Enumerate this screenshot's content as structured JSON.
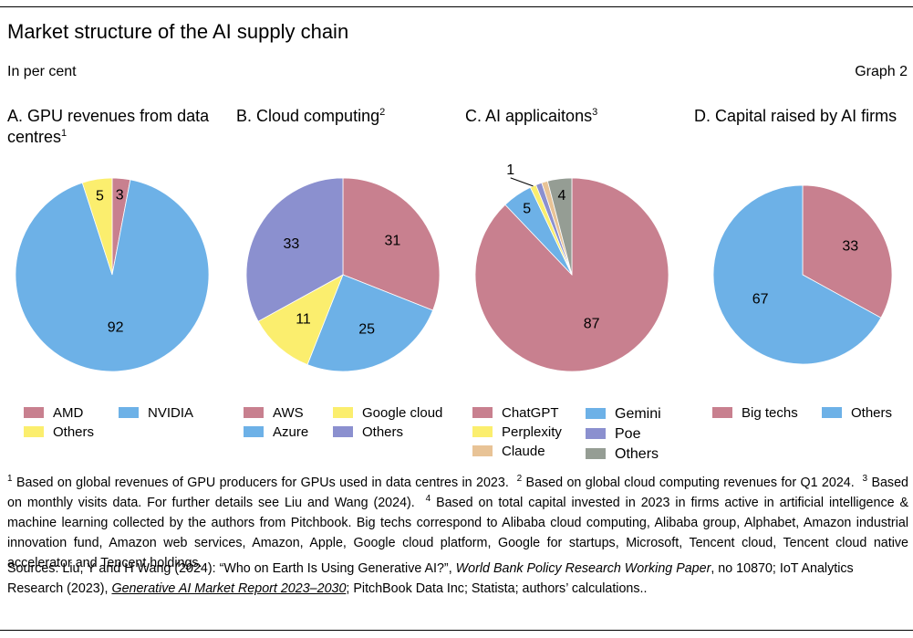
{
  "header": {
    "title": "Market structure of the AI supply chain",
    "unit": "In per cent",
    "graph_no": "Graph 2"
  },
  "colors": {
    "pink": "#c8808f",
    "blue": "#6db1e7",
    "yellow": "#fbee6e",
    "purple": "#8b90cf",
    "tan": "#e8c396",
    "grey": "#959d94"
  },
  "panels": [
    {
      "title": "A. GPU revenues from data centres",
      "sup": "1"
    },
    {
      "title": "B. Cloud computing",
      "sup": "2"
    },
    {
      "title": "C. AI applicaitons",
      "sup": "3"
    },
    {
      "title": "D. Capital raised by AI firms",
      "sup": ""
    }
  ],
  "chart_data": [
    {
      "type": "pie",
      "title": "A. GPU revenues from data centres",
      "slices": [
        {
          "name": "AMD",
          "value": 3,
          "label": "3",
          "color": "#c8808f"
        },
        {
          "name": "NVIDIA",
          "value": 92,
          "label": "92",
          "color": "#6db1e7"
        },
        {
          "name": "Others",
          "value": 5,
          "label": "5",
          "color": "#fbee6e"
        }
      ],
      "legend": [
        {
          "name": "AMD",
          "color": "#c8808f"
        },
        {
          "name": "NVIDIA",
          "color": "#6db1e7"
        },
        {
          "name": "Others",
          "color": "#fbee6e"
        }
      ]
    },
    {
      "type": "pie",
      "title": "B. Cloud computing",
      "slices": [
        {
          "name": "AWS",
          "value": 31,
          "label": "31",
          "color": "#c8808f"
        },
        {
          "name": "Azure",
          "value": 25,
          "label": "25",
          "color": "#6db1e7"
        },
        {
          "name": "Google cloud",
          "value": 11,
          "label": "11",
          "color": "#fbee6e"
        },
        {
          "name": "Others",
          "value": 33,
          "label": "33",
          "color": "#8b90cf"
        }
      ],
      "legend": [
        {
          "name": "AWS",
          "color": "#c8808f"
        },
        {
          "name": "Google cloud",
          "color": "#fbee6e"
        },
        {
          "name": "Azure",
          "color": "#6db1e7"
        },
        {
          "name": "Others",
          "color": "#8b90cf"
        }
      ]
    },
    {
      "type": "pie",
      "title": "C. AI applicaitons",
      "slices": [
        {
          "name": "ChatGPT",
          "value": 87,
          "label": "87",
          "color": "#c8808f"
        },
        {
          "name": "Gemini",
          "value": 5,
          "label": "5",
          "color": "#6db1e7"
        },
        {
          "name": "Perplexity",
          "value": 1,
          "label": "1",
          "color": "#fbee6e"
        },
        {
          "name": "Poe",
          "value": 1,
          "label": "",
          "color": "#8b90cf"
        },
        {
          "name": "Claude",
          "value": 1,
          "label": "",
          "color": "#e8c396"
        },
        {
          "name": "Others",
          "value": 4,
          "label": "4",
          "color": "#959d94"
        }
      ],
      "legend": [
        {
          "name": "ChatGPT",
          "color": "#c8808f"
        },
        {
          "name": "Perplexity",
          "color": "#fbee6e"
        },
        {
          "name": "Claude",
          "color": "#e8c396"
        },
        {
          "name": "Gemini",
          "color": "#6db1e7"
        },
        {
          "name": "Poe",
          "color": "#8b90cf"
        },
        {
          "name": "Others",
          "color": "#959d94"
        }
      ]
    },
    {
      "type": "pie",
      "title": "D. Capital raised by AI firms",
      "slices": [
        {
          "name": "Big techs",
          "value": 33,
          "label": "33",
          "color": "#c8808f"
        },
        {
          "name": "Others",
          "value": 67,
          "label": "67",
          "color": "#6db1e7"
        }
      ],
      "legend": [
        {
          "name": "Big techs",
          "color": "#c8808f"
        },
        {
          "name": "Others",
          "color": "#6db1e7"
        }
      ]
    }
  ],
  "footnotes": {
    "n1": "1",
    "t1": "Based on global revenues of GPU producers for GPUs used in data centres in 2023.",
    "n2": "2",
    "t2": "Based on global cloud computing revenues for Q1 2024.",
    "n3": "3",
    "t3": "Based on monthly visits data. For further details see Liu and Wang (2024).",
    "n4": "4",
    "t4": "Based on total capital invested in 2023 in firms active in artificial intelligence & machine learning collected by the authors from Pitchbook. Big techs correspond to Alibaba cloud computing, Alibaba group, Alphabet, Amazon industrial innovation fund, Amazon web services, Amazon, Apple, Google cloud platform, Google for startups, Microsoft, Tencent cloud, Tencent cloud native accelerator and Tencent holdings."
  },
  "sources": {
    "prefix": "Sources: Liu, Y and H Wang (2024): “Who on Earth Is Using Generative AI?”,",
    "journal": "World Bank Policy Research Working Paper",
    "mid": ", no 10870;  IoT Analytics Research (2023),",
    "report": "Generative AI Market Report 2023–2030",
    "suffix": "; PitchBook Data Inc; Statista; authors’ calculations.."
  }
}
